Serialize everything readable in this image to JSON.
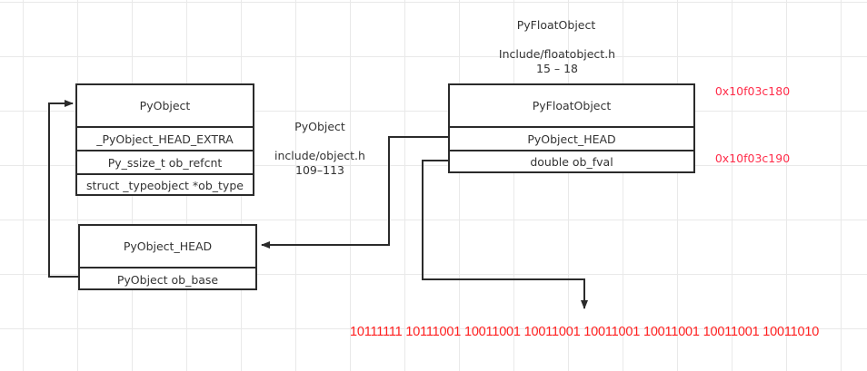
{
  "float_title": {
    "name": "PyFloatObject",
    "file": "Include/floatobject.h",
    "lines": "15 – 18"
  },
  "object_title": {
    "name": "PyObject",
    "file": "include/object.h",
    "lines": "109–113"
  },
  "pyobject_box": {
    "header": "PyObject",
    "rows": [
      "_PyObject_HEAD_EXTRA",
      "Py_ssize_t ob_refcnt",
      "struct _typeobject *ob_type"
    ]
  },
  "head_box": {
    "header": "PyObject_HEAD",
    "rows": [
      "PyObject ob_base"
    ]
  },
  "float_box": {
    "header": "PyFloatObject",
    "rows": [
      "PyObject_HEAD",
      "double ob_fval"
    ]
  },
  "addresses": [
    "0x10f03c180",
    "0x10f03c190"
  ],
  "binary": "10111111 10111001 10011001 10011001 10011001 10011001 10011001 10011010",
  "colors": {
    "address": "#ff2d4a",
    "binary": "#ff2020",
    "line": "#2b2b2b"
  }
}
